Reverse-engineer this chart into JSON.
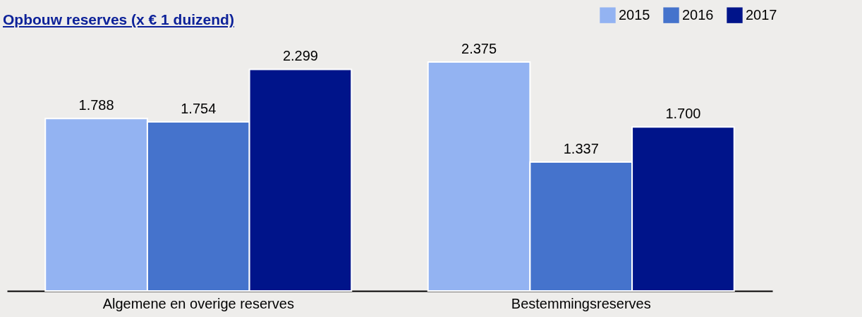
{
  "chart_data": {
    "type": "bar",
    "title": "Opbouw reserves (x € 1 duizend)",
    "categories": [
      "Algemene en overige reserves",
      "Bestemmingsreserves"
    ],
    "series": [
      {
        "name": "2015",
        "color": "#93b3f2",
        "values": [
          1788,
          2375
        ],
        "value_labels": [
          "1.788",
          "2.375"
        ]
      },
      {
        "name": "2016",
        "color": "#4573cc",
        "values": [
          1754,
          1337
        ],
        "value_labels": [
          "1.754",
          "1.337"
        ]
      },
      {
        "name": "2017",
        "color": "#00148a",
        "values": [
          2299,
          1700
        ],
        "value_labels": [
          "2.299",
          "1.700"
        ]
      }
    ],
    "legend": "top right",
    "grid": false
  }
}
